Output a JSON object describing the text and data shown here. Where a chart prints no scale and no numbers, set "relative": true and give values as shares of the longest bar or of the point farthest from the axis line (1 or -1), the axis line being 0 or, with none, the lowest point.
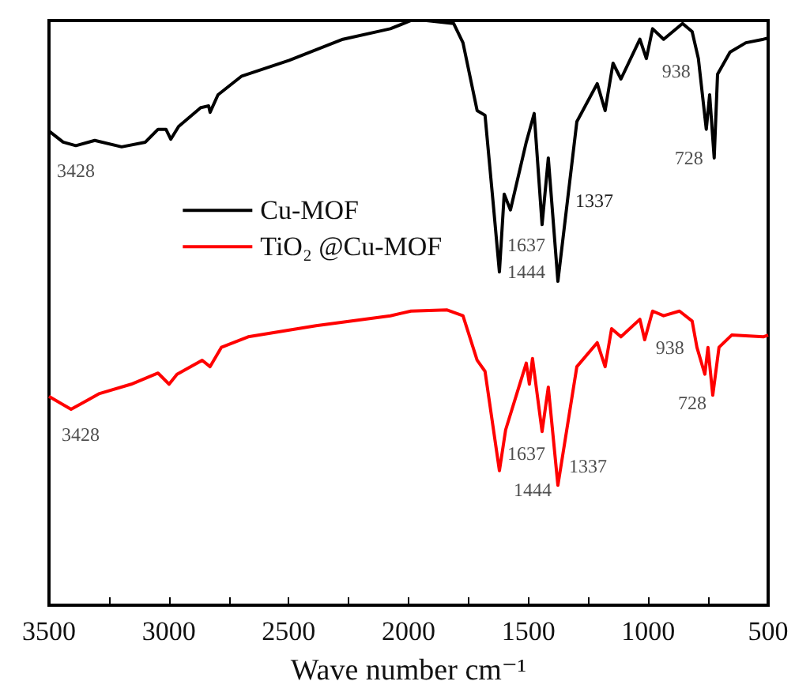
{
  "chart_data": {
    "type": "line",
    "relative": true,
    "xlabel": "Wave number cm⁻¹",
    "xlim": [
      3500,
      500
    ],
    "xticks": [
      3500,
      3000,
      2500,
      2000,
      1500,
      1000,
      500
    ],
    "tick_labels": "x",
    "grid": false,
    "marker": "none",
    "line_style": "solid",
    "legend": "top left",
    "series": [
      {
        "name": "Cu-MOF",
        "color": "#000000",
        "x": [
          3500,
          3441,
          3388,
          3309,
          3197,
          3098,
          3045,
          3012,
          2992,
          2959,
          2867,
          2834,
          2828,
          2795,
          2696,
          2498,
          2274,
          2076,
          1990,
          1925,
          1812,
          1773,
          1714,
          1681,
          1648,
          1621,
          1601,
          1575,
          1509,
          1476,
          1443,
          1417,
          1377,
          1298,
          1213,
          1180,
          1147,
          1114,
          1035,
          1008,
          982,
          936,
          857,
          817,
          791,
          758,
          744,
          725,
          711,
          659,
          593,
          520,
          500
        ],
        "values": [
          0.811,
          0.792,
          0.786,
          0.795,
          0.784,
          0.792,
          0.814,
          0.814,
          0.797,
          0.819,
          0.851,
          0.854,
          0.843,
          0.873,
          0.905,
          0.932,
          0.968,
          0.986,
          1.0,
          1.0,
          0.995,
          0.962,
          0.846,
          0.838,
          0.692,
          0.57,
          0.703,
          0.676,
          0.792,
          0.841,
          0.651,
          0.765,
          0.554,
          0.827,
          0.892,
          0.846,
          0.927,
          0.9,
          0.968,
          0.935,
          0.986,
          0.968,
          0.995,
          0.981,
          0.935,
          0.814,
          0.873,
          0.765,
          0.908,
          0.946,
          0.962,
          0.968,
          0.97
        ]
      },
      {
        "name": "TiO₂ @Cu-MOF",
        "color": "#ff0000",
        "x": [
          3500,
          3408,
          3289,
          3157,
          3045,
          2999,
          2966,
          2861,
          2828,
          2781,
          2669,
          2386,
          2076,
          1990,
          1839,
          1773,
          1714,
          1681,
          1621,
          1595,
          1509,
          1496,
          1483,
          1443,
          1417,
          1377,
          1298,
          1213,
          1180,
          1153,
          1114,
          1035,
          1015,
          982,
          936,
          870,
          817,
          797,
          764,
          751,
          731,
          705,
          652,
          520,
          500
        ],
        "values": [
          0.357,
          0.335,
          0.362,
          0.378,
          0.397,
          0.378,
          0.395,
          0.419,
          0.408,
          0.441,
          0.459,
          0.478,
          0.495,
          0.503,
          0.505,
          0.495,
          0.419,
          0.4,
          0.23,
          0.3,
          0.414,
          0.378,
          0.422,
          0.297,
          0.373,
          0.205,
          0.408,
          0.449,
          0.408,
          0.473,
          0.459,
          0.489,
          0.454,
          0.503,
          0.495,
          0.503,
          0.486,
          0.441,
          0.395,
          0.441,
          0.359,
          0.441,
          0.462,
          0.459,
          0.462
        ]
      }
    ],
    "annotations": [
      {
        "text": "3428",
        "x": 3388,
        "y": 0.786
      },
      {
        "text": "1637",
        "x": 1621,
        "y": 0.57
      },
      {
        "text": "1444",
        "x": 1377,
        "y": 0.554
      },
      "1337",
      {
        "text": "938",
        "x": 936,
        "y": 0.968
      },
      {
        "text": "728",
        "x": 725,
        "y": 0.765
      },
      {
        "text": "3428",
        "x": 3408,
        "y": 0.335
      },
      {
        "text": "1637",
        "x": 1621,
        "y": 0.23
      },
      {
        "text": "1444",
        "x": 1377,
        "y": 0.205
      },
      {
        "text": "1337",
        "x": 1377,
        "y": 0.205
      },
      {
        "text": "938",
        "x": 936,
        "y": 0.495
      },
      {
        "text": "728",
        "x": 731,
        "y": 0.359
      }
    ]
  }
}
